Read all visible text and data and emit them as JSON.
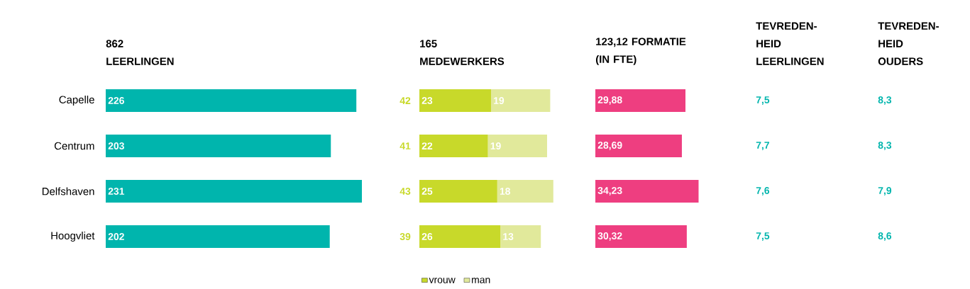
{
  "chart_data": [
    {
      "type": "bar",
      "orientation": "horizontal",
      "title": "862 LEERLINGEN",
      "categories": [
        "Capelle",
        "Centrum",
        "Delfshaven",
        "Hoogvliet"
      ],
      "values": [
        226,
        203,
        231,
        202
      ],
      "color": "#00b5ad",
      "data_labels": true,
      "tick_labels": "y"
    },
    {
      "type": "bar",
      "orientation": "horizontal",
      "stacked": true,
      "title": "165 MEDEWERKERS",
      "categories": [
        null,
        null,
        null,
        null
      ],
      "series": [
        {
          "name": "vrouw",
          "color": "#c8d92a",
          "values": [
            23,
            22,
            25,
            26
          ]
        },
        {
          "name": "man",
          "color": "#e1e99b",
          "values": [
            19,
            19,
            18,
            13
          ]
        }
      ],
      "data_labels": true,
      "totals": [
        "42",
        "41",
        "43",
        "39"
      ],
      "legend": "bottom"
    },
    {
      "type": "bar",
      "orientation": "horizontal",
      "title": "123,12 FORMATIE (IN FTE)",
      "categories": [
        null,
        null,
        null,
        null
      ],
      "values": [
        29.88,
        28.69,
        34.23,
        30.32
      ],
      "value_labels": [
        "29,88",
        "28,69",
        "34,23",
        "30,32"
      ],
      "color": "#ee3e80"
    },
    {
      "type": "other",
      "title": "TEVREDEN-HEID LEERLINGEN",
      "categories": [
        null,
        null,
        null,
        null
      ],
      "values": [
        7.5,
        7.7,
        7.6,
        7.5
      ],
      "value_labels": [
        "7,5",
        "7,7",
        "7,6",
        "7,5"
      ],
      "color": "#00b5ad"
    },
    {
      "type": "other",
      "title": "TEVREDEN-HEID OUDERS",
      "categories": [
        null,
        null,
        null,
        null
      ],
      "values": [
        8.3,
        8.3,
        7.9,
        8.6
      ],
      "value_labels": [
        "8,3",
        "8,3",
        "7,9",
        "8,6"
      ],
      "color": "#00b5ad"
    }
  ]
}
